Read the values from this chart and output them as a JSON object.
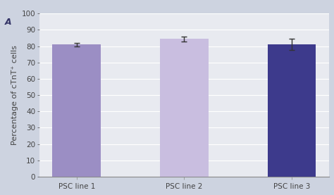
{
  "categories": [
    "PSC line 1",
    "PSC line 2",
    "PSC line 3"
  ],
  "values": [
    81.0,
    84.5,
    81.0
  ],
  "errors": [
    1.2,
    1.5,
    3.5
  ],
  "bar_colors": [
    "#9b8ec4",
    "#c9bee0",
    "#3d3a8c"
  ],
  "ylabel": "Percentage of cTnT⁺ cells",
  "ylim": [
    0,
    100
  ],
  "yticks": [
    0,
    10,
    20,
    30,
    40,
    50,
    60,
    70,
    80,
    90,
    100
  ],
  "figure_bg_color": "#cdd3e0",
  "plot_bg_color": "#e8eaf0",
  "grid_color": "#ffffff",
  "annotation": "A",
  "bar_width": 0.45,
  "error_color": "#333333",
  "tick_label_fontsize": 7.5,
  "ylabel_fontsize": 8,
  "annotation_fontsize": 9,
  "bottom_bar_color": "#8b8fba"
}
